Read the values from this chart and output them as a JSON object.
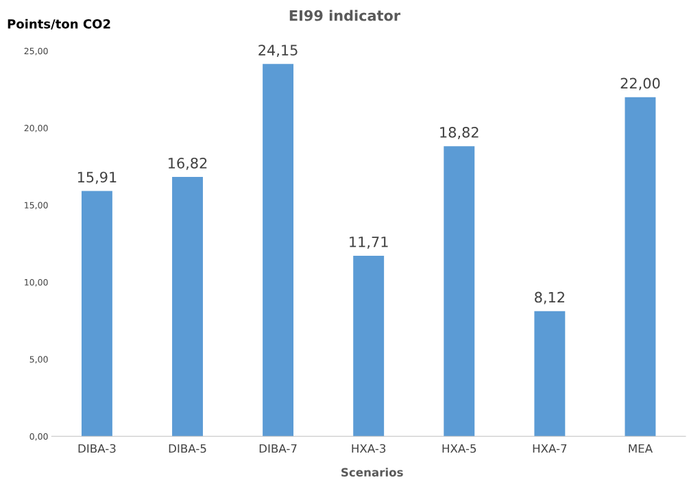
{
  "chart_data": {
    "type": "bar",
    "title": "EI99 indicator",
    "ylabel": "Points/ton CO2",
    "xlabel": "Scenarios",
    "categories": [
      "DIBA-3",
      "DIBA-5",
      "DIBA-7",
      "HXA-3",
      "HXA-5",
      "HXA-7",
      "MEA"
    ],
    "values": [
      15.91,
      16.82,
      24.15,
      11.71,
      18.82,
      8.12,
      22.0
    ],
    "value_labels": [
      "15,91",
      "16,82",
      "24,15",
      "11,71",
      "18,82",
      "8,12",
      "22,00"
    ],
    "color": "#5b9bd5",
    "ylim": [
      0,
      25
    ],
    "yticks": [
      {
        "value": 0,
        "label": "0,00"
      },
      {
        "value": 5,
        "label": "5,00"
      },
      {
        "value": 10,
        "label": "10,00"
      },
      {
        "value": 15,
        "label": "15,00"
      },
      {
        "value": 20,
        "label": "20,00"
      },
      {
        "value": 25,
        "label": "25,00"
      }
    ],
    "grid": false,
    "legend": false
  }
}
